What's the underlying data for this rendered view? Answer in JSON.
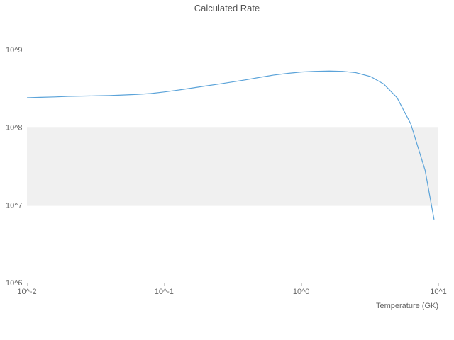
{
  "title": "Calculated Rate",
  "xlabel": "Temperature (GK)",
  "axes": {
    "x_tick_labels": [
      "10^-2",
      "10^-1",
      "10^0",
      "10^1"
    ],
    "x_tick_values": [
      0.01,
      0.1,
      1,
      10
    ],
    "y_tick_labels": [
      "10^6",
      "10^7",
      "10^8",
      "10^9"
    ],
    "y_tick_values": [
      1000000,
      10000000,
      100000000,
      1000000000
    ]
  },
  "colors": {
    "line": "#5ba3d9",
    "band": "#f0f0f0",
    "grid": "#e6e6e6",
    "axis": "#cccccc",
    "tick_text": "#666666",
    "title_text": "#555555"
  },
  "chart_data": {
    "type": "line",
    "title": "Calculated Rate",
    "xlabel": "Temperature (GK)",
    "ylabel": "",
    "x_scale": "log",
    "y_scale": "log",
    "xlim": [
      0.01,
      10
    ],
    "ylim": [
      1000000,
      1000000000
    ],
    "grid": "horizontal-only",
    "legend": "none",
    "band_y": [
      10000000,
      100000000
    ],
    "series_name": "Calculated Rate",
    "x": [
      0.01,
      0.0125,
      0.016,
      0.02,
      0.025,
      0.032,
      0.04,
      0.05,
      0.063,
      0.08,
      0.1,
      0.125,
      0.16,
      0.2,
      0.25,
      0.32,
      0.4,
      0.5,
      0.63,
      0.8,
      1.0,
      1.25,
      1.6,
      2.0,
      2.5,
      3.2,
      4.0,
      5.0,
      6.3,
      7.0,
      8.0,
      9.3
    ],
    "y": [
      240000000,
      243000000,
      246000000,
      250000000,
      252000000,
      254000000,
      256000000,
      260000000,
      265000000,
      272000000,
      285000000,
      300000000,
      320000000,
      340000000,
      360000000,
      385000000,
      410000000,
      440000000,
      470000000,
      495000000,
      515000000,
      525000000,
      530000000,
      525000000,
      505000000,
      450000000,
      360000000,
      240000000,
      110000000,
      60000000,
      28000000,
      6500000
    ]
  }
}
